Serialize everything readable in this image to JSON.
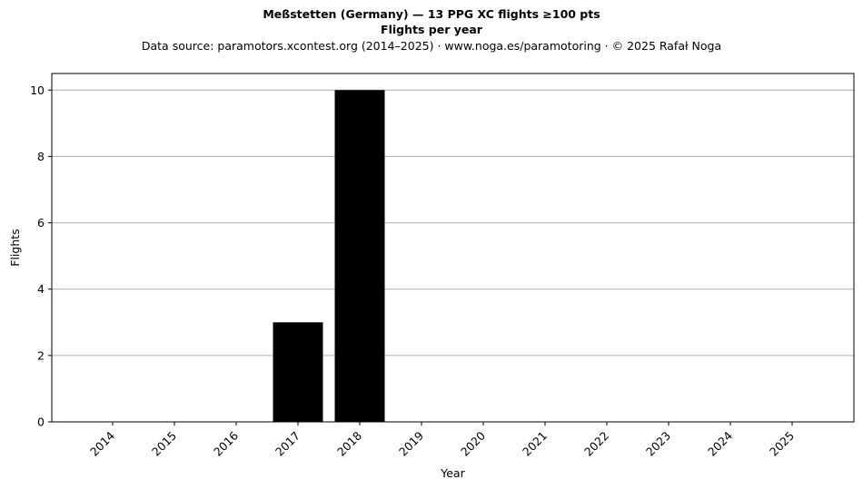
{
  "header": {
    "title_line1": "Meßstetten (Germany)  —  13 PPG XC flights ≥100 pts",
    "title_line2": "Flights per year",
    "subtitle": "Data source: paramotors.xcontest.org (2014–2025)  ·  www.noga.es/paramotoring  ·  © 2025 Rafał Noga"
  },
  "chart_data": {
    "type": "bar",
    "categories": [
      "2014",
      "2015",
      "2016",
      "2017",
      "2018",
      "2019",
      "2020",
      "2021",
      "2022",
      "2023",
      "2024",
      "2025"
    ],
    "values": [
      0,
      0,
      0,
      3,
      10,
      0,
      0,
      0,
      0,
      0,
      0,
      0
    ],
    "xlabel": "Year",
    "ylabel": "Flights",
    "ylim": [
      0,
      10.5
    ],
    "yticks": [
      0,
      2,
      4,
      6,
      8,
      10
    ],
    "grid": "y",
    "bar_color": "#000000",
    "grid_color": "#b0b0b0"
  }
}
